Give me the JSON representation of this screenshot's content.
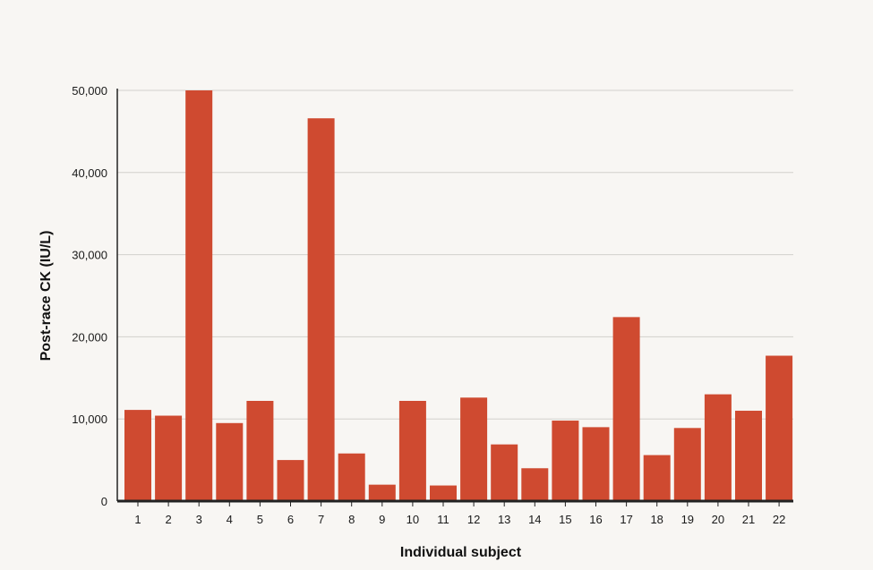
{
  "chart_data": {
    "type": "bar",
    "title": "",
    "xlabel": "Individual subject",
    "ylabel": "Post-race CK (IU/L)",
    "ylim": [
      0,
      50000
    ],
    "yticks": [
      0,
      10000,
      20000,
      30000,
      40000,
      50000
    ],
    "ytick_labels": [
      "0",
      "10,000",
      "20,000",
      "30,000",
      "40,000",
      "50,000"
    ],
    "categories": [
      "1",
      "2",
      "3",
      "4",
      "5",
      "6",
      "7",
      "8",
      "9",
      "10",
      "11",
      "12",
      "13",
      "14",
      "15",
      "16",
      "17",
      "18",
      "19",
      "20",
      "21",
      "22"
    ],
    "values": [
      11100,
      10400,
      51000,
      9500,
      12200,
      5000,
      46600,
      5800,
      2000,
      12200,
      1900,
      12600,
      6900,
      4000,
      9800,
      9000,
      22400,
      5600,
      8900,
      13000,
      11000,
      17700
    ],
    "grid": true,
    "bar_color": "#cf4a30",
    "gridline_color": "#d2d0cc",
    "axis_color": "#222222"
  }
}
